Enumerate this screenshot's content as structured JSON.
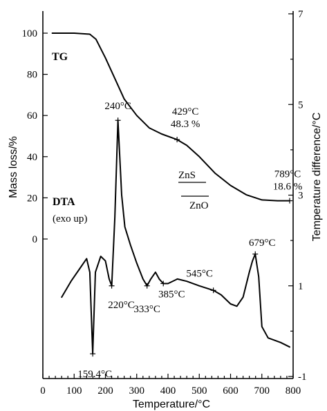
{
  "chart_data": {
    "type": "line",
    "xlabel": "Temperature/°C",
    "ylabel_left": "Mass loss/%",
    "ylabel_right": "Temperature  difference/°C",
    "x_ticks": [
      "0",
      "100",
      "200",
      "300",
      "400",
      "500",
      "600",
      "700",
      "800"
    ],
    "y_left_ticks": [
      "0",
      "20",
      "40",
      "60",
      "80",
      "100"
    ],
    "y_right_ticks": [
      "-1",
      "1",
      "3",
      "5",
      "7"
    ],
    "xlim": [
      0,
      800
    ],
    "ylim_left": [
      -35,
      100
    ],
    "ylim_right": [
      -1,
      7
    ],
    "tg_label": "TG",
    "dta_label": "DTA",
    "dta_sublabel": "(exo up)",
    "series": [
      {
        "name": "TG",
        "axis": "left",
        "x": [
          30,
          100,
          150,
          170,
          200,
          230,
          260,
          300,
          340,
          380,
          429,
          460,
          500,
          550,
          600,
          650,
          700,
          750,
          789
        ],
        "y": [
          100,
          100,
          99.5,
          97,
          88,
          78,
          68,
          60,
          54,
          51,
          48.3,
          45.5,
          40,
          32,
          26,
          21.5,
          19,
          18.6,
          18.6
        ]
      },
      {
        "name": "DTA",
        "axis": "right",
        "x": [
          60,
          90,
          120,
          140,
          150,
          159.4,
          168,
          185,
          200,
          212,
          220,
          230,
          240,
          252,
          262,
          280,
          300,
          320,
          333,
          345,
          360,
          372,
          385,
          400,
          430,
          460,
          500,
          545,
          570,
          600,
          620,
          640,
          660,
          670,
          679,
          690,
          700,
          720,
          760,
          789
        ],
        "y": [
          0.75,
          1.1,
          1.4,
          1.6,
          1.3,
          -0.5,
          1.3,
          1.65,
          1.55,
          1.15,
          1.0,
          2.5,
          4.65,
          3.0,
          2.3,
          1.9,
          1.5,
          1.15,
          1.0,
          1.15,
          1.3,
          1.15,
          1.05,
          1.05,
          1.15,
          1.1,
          1.0,
          0.9,
          0.8,
          0.6,
          0.55,
          0.75,
          1.3,
          1.55,
          1.7,
          1.2,
          0.1,
          -0.15,
          -0.25,
          -0.35
        ]
      }
    ],
    "annotations": [
      {
        "series": "DTA",
        "x": 240,
        "y": 4.65,
        "lines": [
          "240°C"
        ]
      },
      {
        "series": "DTA",
        "x": 220,
        "y": 1.0,
        "lines": [
          "220°C"
        ]
      },
      {
        "series": "DTA",
        "x": 159.4,
        "y": -0.5,
        "lines": [
          "159.4°C"
        ]
      },
      {
        "series": "DTA",
        "x": 333,
        "y": 1.0,
        "lines": [
          "333°C"
        ]
      },
      {
        "series": "DTA",
        "x": 385,
        "y": 1.05,
        "lines": [
          "385°C"
        ]
      },
      {
        "series": "DTA",
        "x": 545,
        "y": 0.9,
        "lines": [
          "545°C"
        ]
      },
      {
        "series": "DTA",
        "x": 679,
        "y": 1.7,
        "lines": [
          "679°C"
        ]
      },
      {
        "series": "TG",
        "x": 429,
        "y": 48.3,
        "lines": [
          "429°C",
          "48.3 %"
        ]
      },
      {
        "series": "TG",
        "x": 789,
        "y": 18.6,
        "lines": [
          "789°C",
          "18.6 %"
        ]
      }
    ],
    "phase_labels": [
      "ZnS",
      "ZnO"
    ],
    "grid": false
  }
}
